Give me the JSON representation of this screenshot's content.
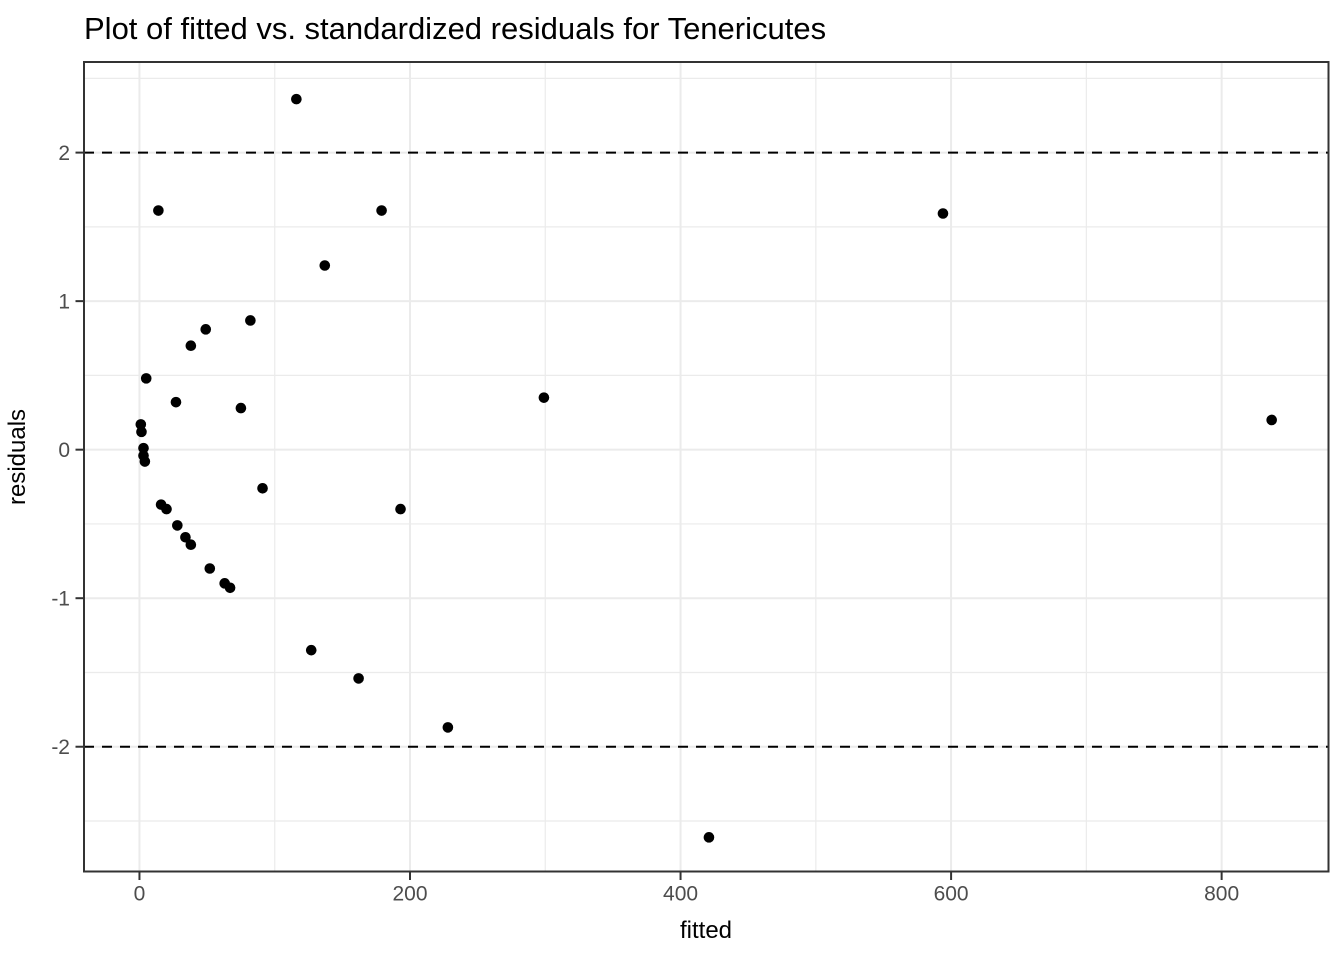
{
  "chart_data": {
    "type": "scatter",
    "title": "Plot of fitted vs. standardized residuals for Tenericutes",
    "xlabel": "fitted",
    "ylabel": "residuals",
    "xlim": [
      -41,
      879
    ],
    "ylim": [
      -2.84,
      2.61
    ],
    "x_ticks": [
      0,
      200,
      400,
      600,
      800
    ],
    "x_minor_ticks": [
      100,
      300,
      500,
      700
    ],
    "y_ticks": [
      -2,
      -1,
      0,
      1,
      2
    ],
    "y_minor_ticks": [
      -2.5,
      -1.5,
      -0.5,
      0.5,
      1.5,
      2.5
    ],
    "grid": true,
    "legend": false,
    "reference_lines": {
      "values": [
        2,
        -2
      ],
      "style": "dashed"
    },
    "points": [
      {
        "fitted": 116,
        "residual": 2.36
      },
      {
        "fitted": 14,
        "residual": 1.61
      },
      {
        "fitted": 179,
        "residual": 1.61
      },
      {
        "fitted": 594,
        "residual": 1.59
      },
      {
        "fitted": 137,
        "residual": 1.24
      },
      {
        "fitted": 82,
        "residual": 0.87
      },
      {
        "fitted": 49,
        "residual": 0.81
      },
      {
        "fitted": 38,
        "residual": 0.7
      },
      {
        "fitted": 5,
        "residual": 0.48
      },
      {
        "fitted": 299,
        "residual": 0.35
      },
      {
        "fitted": 27,
        "residual": 0.32
      },
      {
        "fitted": 75,
        "residual": 0.28
      },
      {
        "fitted": 837,
        "residual": 0.2
      },
      {
        "fitted": 1,
        "residual": 0.17
      },
      {
        "fitted": 1.5,
        "residual": 0.12
      },
      {
        "fitted": 3,
        "residual": 0.01
      },
      {
        "fitted": 3,
        "residual": -0.04
      },
      {
        "fitted": 4,
        "residual": -0.08
      },
      {
        "fitted": 91,
        "residual": -0.26
      },
      {
        "fitted": 16,
        "residual": -0.37
      },
      {
        "fitted": 20,
        "residual": -0.4
      },
      {
        "fitted": 193,
        "residual": -0.4
      },
      {
        "fitted": 28,
        "residual": -0.51
      },
      {
        "fitted": 34,
        "residual": -0.59
      },
      {
        "fitted": 38,
        "residual": -0.64
      },
      {
        "fitted": 52,
        "residual": -0.8
      },
      {
        "fitted": 63,
        "residual": -0.9
      },
      {
        "fitted": 67,
        "residual": -0.93
      },
      {
        "fitted": 127,
        "residual": -1.35
      },
      {
        "fitted": 162,
        "residual": -1.54
      },
      {
        "fitted": 228,
        "residual": -1.87
      },
      {
        "fitted": 421,
        "residual": -2.61
      }
    ],
    "colors": {
      "point": "#000000",
      "grid": "#EBEBEB",
      "panel_border": "#333333",
      "tick_mark": "#333333",
      "tick_label": "#4D4D4D",
      "reference_line": "#000000",
      "background": "#FFFFFF"
    }
  }
}
